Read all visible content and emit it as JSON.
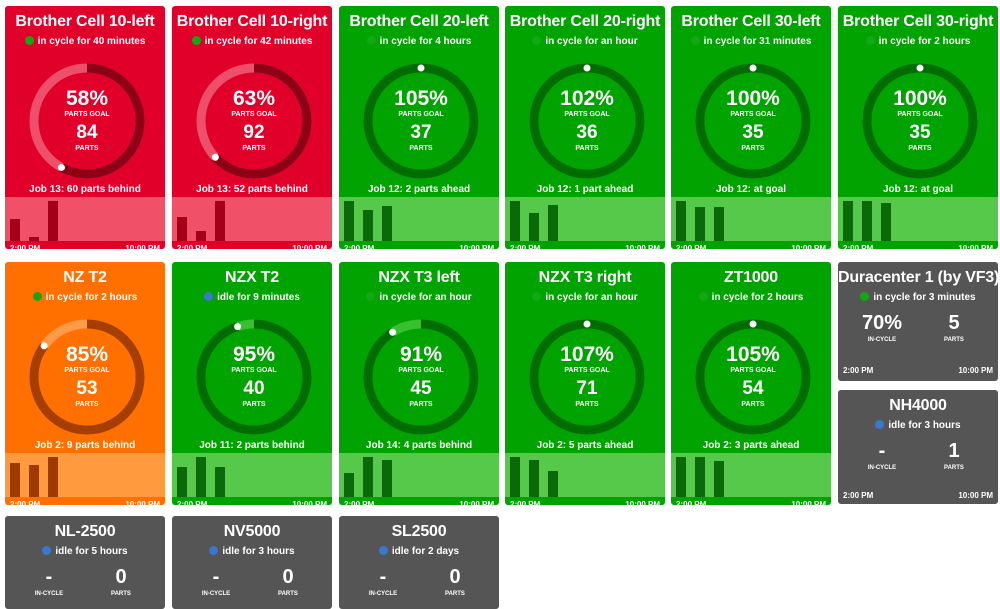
{
  "colors": {
    "red": {
      "bg": "#e0002a",
      "track": "#ee4f6a",
      "arc": "#8e0016",
      "spark": "#f05068",
      "bar": "#a50019"
    },
    "green": {
      "bg": "#00a300",
      "track": "#38c02e",
      "arc": "#006d00",
      "spark": "#56c84a",
      "bar": "#0a6a0a"
    },
    "orange": {
      "bg": "#ff7000",
      "track": "#ff9a48",
      "arc": "#a63e00",
      "spark": "#ff9a3e",
      "bar": "#9e3a00"
    },
    "gray": {
      "bg": "#555555"
    },
    "status_dot": {
      "in_cycle": "#13a813",
      "idle": "#3a78d0"
    }
  },
  "machines": [
    {
      "name": "Brother Cell 10-left",
      "status": "in cycle for 40 minutes",
      "state": "in_cycle",
      "theme": "red",
      "percent": "58%",
      "percent_value": 58,
      "parts_goal_label": "PARTS GOAL",
      "parts": "84",
      "parts_label": "PARTS",
      "job": "Job 13: 60 parts behind",
      "bars": [
        0.55,
        0.1,
        1.0
      ],
      "start_time": "2:00 PM",
      "end_time": "10:00 PM"
    },
    {
      "name": "Brother Cell 10-right",
      "status": "in cycle for 42 minutes",
      "state": "in_cycle",
      "theme": "red",
      "percent": "63%",
      "percent_value": 63,
      "parts_goal_label": "PARTS GOAL",
      "parts": "92",
      "parts_label": "PARTS",
      "job": "Job 13: 52 parts behind",
      "bars": [
        0.6,
        0.25,
        1.0
      ],
      "start_time": "2:00 PM",
      "end_time": "10:00 PM"
    },
    {
      "name": "Brother Cell 20-left",
      "status": "in cycle for 4 hours",
      "state": "in_cycle",
      "theme": "green",
      "percent": "105%",
      "percent_value": 105,
      "parts_goal_label": "PARTS GOAL",
      "parts": "37",
      "parts_label": "PARTS",
      "job": "Job 12: 2 parts ahead",
      "bars": [
        1.0,
        0.78,
        0.88
      ],
      "start_time": "2:00 PM",
      "end_time": "10:00 PM"
    },
    {
      "name": "Brother Cell 20-right",
      "status": "in cycle for an hour",
      "state": "in_cycle",
      "theme": "green",
      "percent": "102%",
      "percent_value": 102,
      "parts_goal_label": "PARTS GOAL",
      "parts": "36",
      "parts_label": "PARTS",
      "job": "Job 12: 1 part ahead",
      "bars": [
        1.0,
        0.7,
        0.9
      ],
      "start_time": "2:00 PM",
      "end_time": "10:00 PM"
    },
    {
      "name": "Brother Cell 30-left",
      "status": "in cycle for 31 minutes",
      "state": "in_cycle",
      "theme": "green",
      "percent": "100%",
      "percent_value": 100,
      "parts_goal_label": "PARTS GOAL",
      "parts": "35",
      "parts_label": "PARTS",
      "job": "Job 12: at goal",
      "bars": [
        1.0,
        0.85,
        0.85
      ],
      "start_time": "2:00 PM",
      "end_time": "10:00 PM"
    },
    {
      "name": "Brother Cell 30-right",
      "status": "in cycle for 2 hours",
      "state": "in_cycle",
      "theme": "green",
      "percent": "100%",
      "percent_value": 100,
      "parts_goal_label": "PARTS GOAL",
      "parts": "35",
      "parts_label": "PARTS",
      "job": "Job 12: at goal",
      "bars": [
        1.0,
        1.0,
        0.95
      ],
      "start_time": "2:00 PM",
      "end_time": "10:00 PM"
    },
    {
      "name": "NZ T2",
      "status": "in cycle for 2 hours",
      "state": "in_cycle",
      "theme": "orange",
      "percent": "85%",
      "percent_value": 85,
      "parts_goal_label": "PARTS GOAL",
      "parts": "53",
      "parts_label": "PARTS",
      "job": "Job 2: 9 parts behind",
      "bars": [
        0.85,
        0.8,
        1.0
      ],
      "start_time": "2:00 PM",
      "end_time": "10:00 PM"
    },
    {
      "name": "NZX T2",
      "status": "idle for 9 minutes",
      "state": "idle",
      "theme": "green",
      "percent": "95%",
      "percent_value": 95,
      "parts_goal_label": "PARTS GOAL",
      "parts": "40",
      "parts_label": "PARTS",
      "job": "Job 11: 2 parts behind",
      "bars": [
        0.75,
        1.0,
        0.75
      ],
      "start_time": "2:00 PM",
      "end_time": "10:00 PM"
    },
    {
      "name": "NZX T3 left",
      "status": "in cycle for an hour",
      "state": "in_cycle",
      "theme": "green",
      "percent": "91%",
      "percent_value": 91,
      "parts_goal_label": "PARTS GOAL",
      "parts": "45",
      "parts_label": "PARTS",
      "job": "Job 14: 4 parts behind",
      "bars": [
        0.6,
        1.0,
        0.92
      ],
      "start_time": "2:00 PM",
      "end_time": "10:00 PM"
    },
    {
      "name": "NZX T3 right",
      "status": "in cycle for an hour",
      "state": "in_cycle",
      "theme": "green",
      "percent": "107%",
      "percent_value": 107,
      "parts_goal_label": "PARTS GOAL",
      "parts": "71",
      "parts_label": "PARTS",
      "job": "Job 2: 5 parts ahead",
      "bars": [
        1.0,
        0.92,
        0.65
      ],
      "start_time": "2:00 PM",
      "end_time": "10:00 PM"
    },
    {
      "name": "ZT1000",
      "status": "in cycle for 2 hours",
      "state": "in_cycle",
      "theme": "green",
      "percent": "105%",
      "percent_value": 105,
      "parts_goal_label": "PARTS GOAL",
      "parts": "54",
      "parts_label": "PARTS",
      "job": "Job 2: 3 parts ahead",
      "bars": [
        1.0,
        1.0,
        0.9
      ],
      "start_time": "2:00 PM",
      "end_time": "10:00 PM"
    }
  ],
  "gray_machines": [
    {
      "name": "Duracenter 1 (by VF3)",
      "status": "in cycle for 3 minutes",
      "state": "in_cycle",
      "in_cycle": "70%",
      "in_cycle_label": "IN-CYCLE",
      "parts": "5",
      "parts_label": "PARTS",
      "start_time": "2:00 PM",
      "end_time": "10:00 PM"
    },
    {
      "name": "NH4000",
      "status": "idle for 3 hours",
      "state": "idle",
      "in_cycle": "-",
      "in_cycle_label": "IN-CYCLE",
      "parts": "1",
      "parts_label": "PARTS",
      "start_time": "2:00 PM",
      "end_time": "10:00 PM"
    },
    {
      "name": "NL-2500",
      "status": "idle for 5 hours",
      "state": "idle",
      "in_cycle": "-",
      "in_cycle_label": "IN-CYCLE",
      "parts": "0",
      "parts_label": "PARTS",
      "start_time": "",
      "end_time": ""
    },
    {
      "name": "NV5000",
      "status": "idle for 3 hours",
      "state": "idle",
      "in_cycle": "-",
      "in_cycle_label": "IN-CYCLE",
      "parts": "0",
      "parts_label": "PARTS",
      "start_time": "",
      "end_time": ""
    },
    {
      "name": "SL2500",
      "status": "idle for 2 days",
      "state": "idle",
      "in_cycle": "-",
      "in_cycle_label": "IN-CYCLE",
      "parts": "0",
      "parts_label": "PARTS",
      "start_time": "",
      "end_time": ""
    }
  ]
}
